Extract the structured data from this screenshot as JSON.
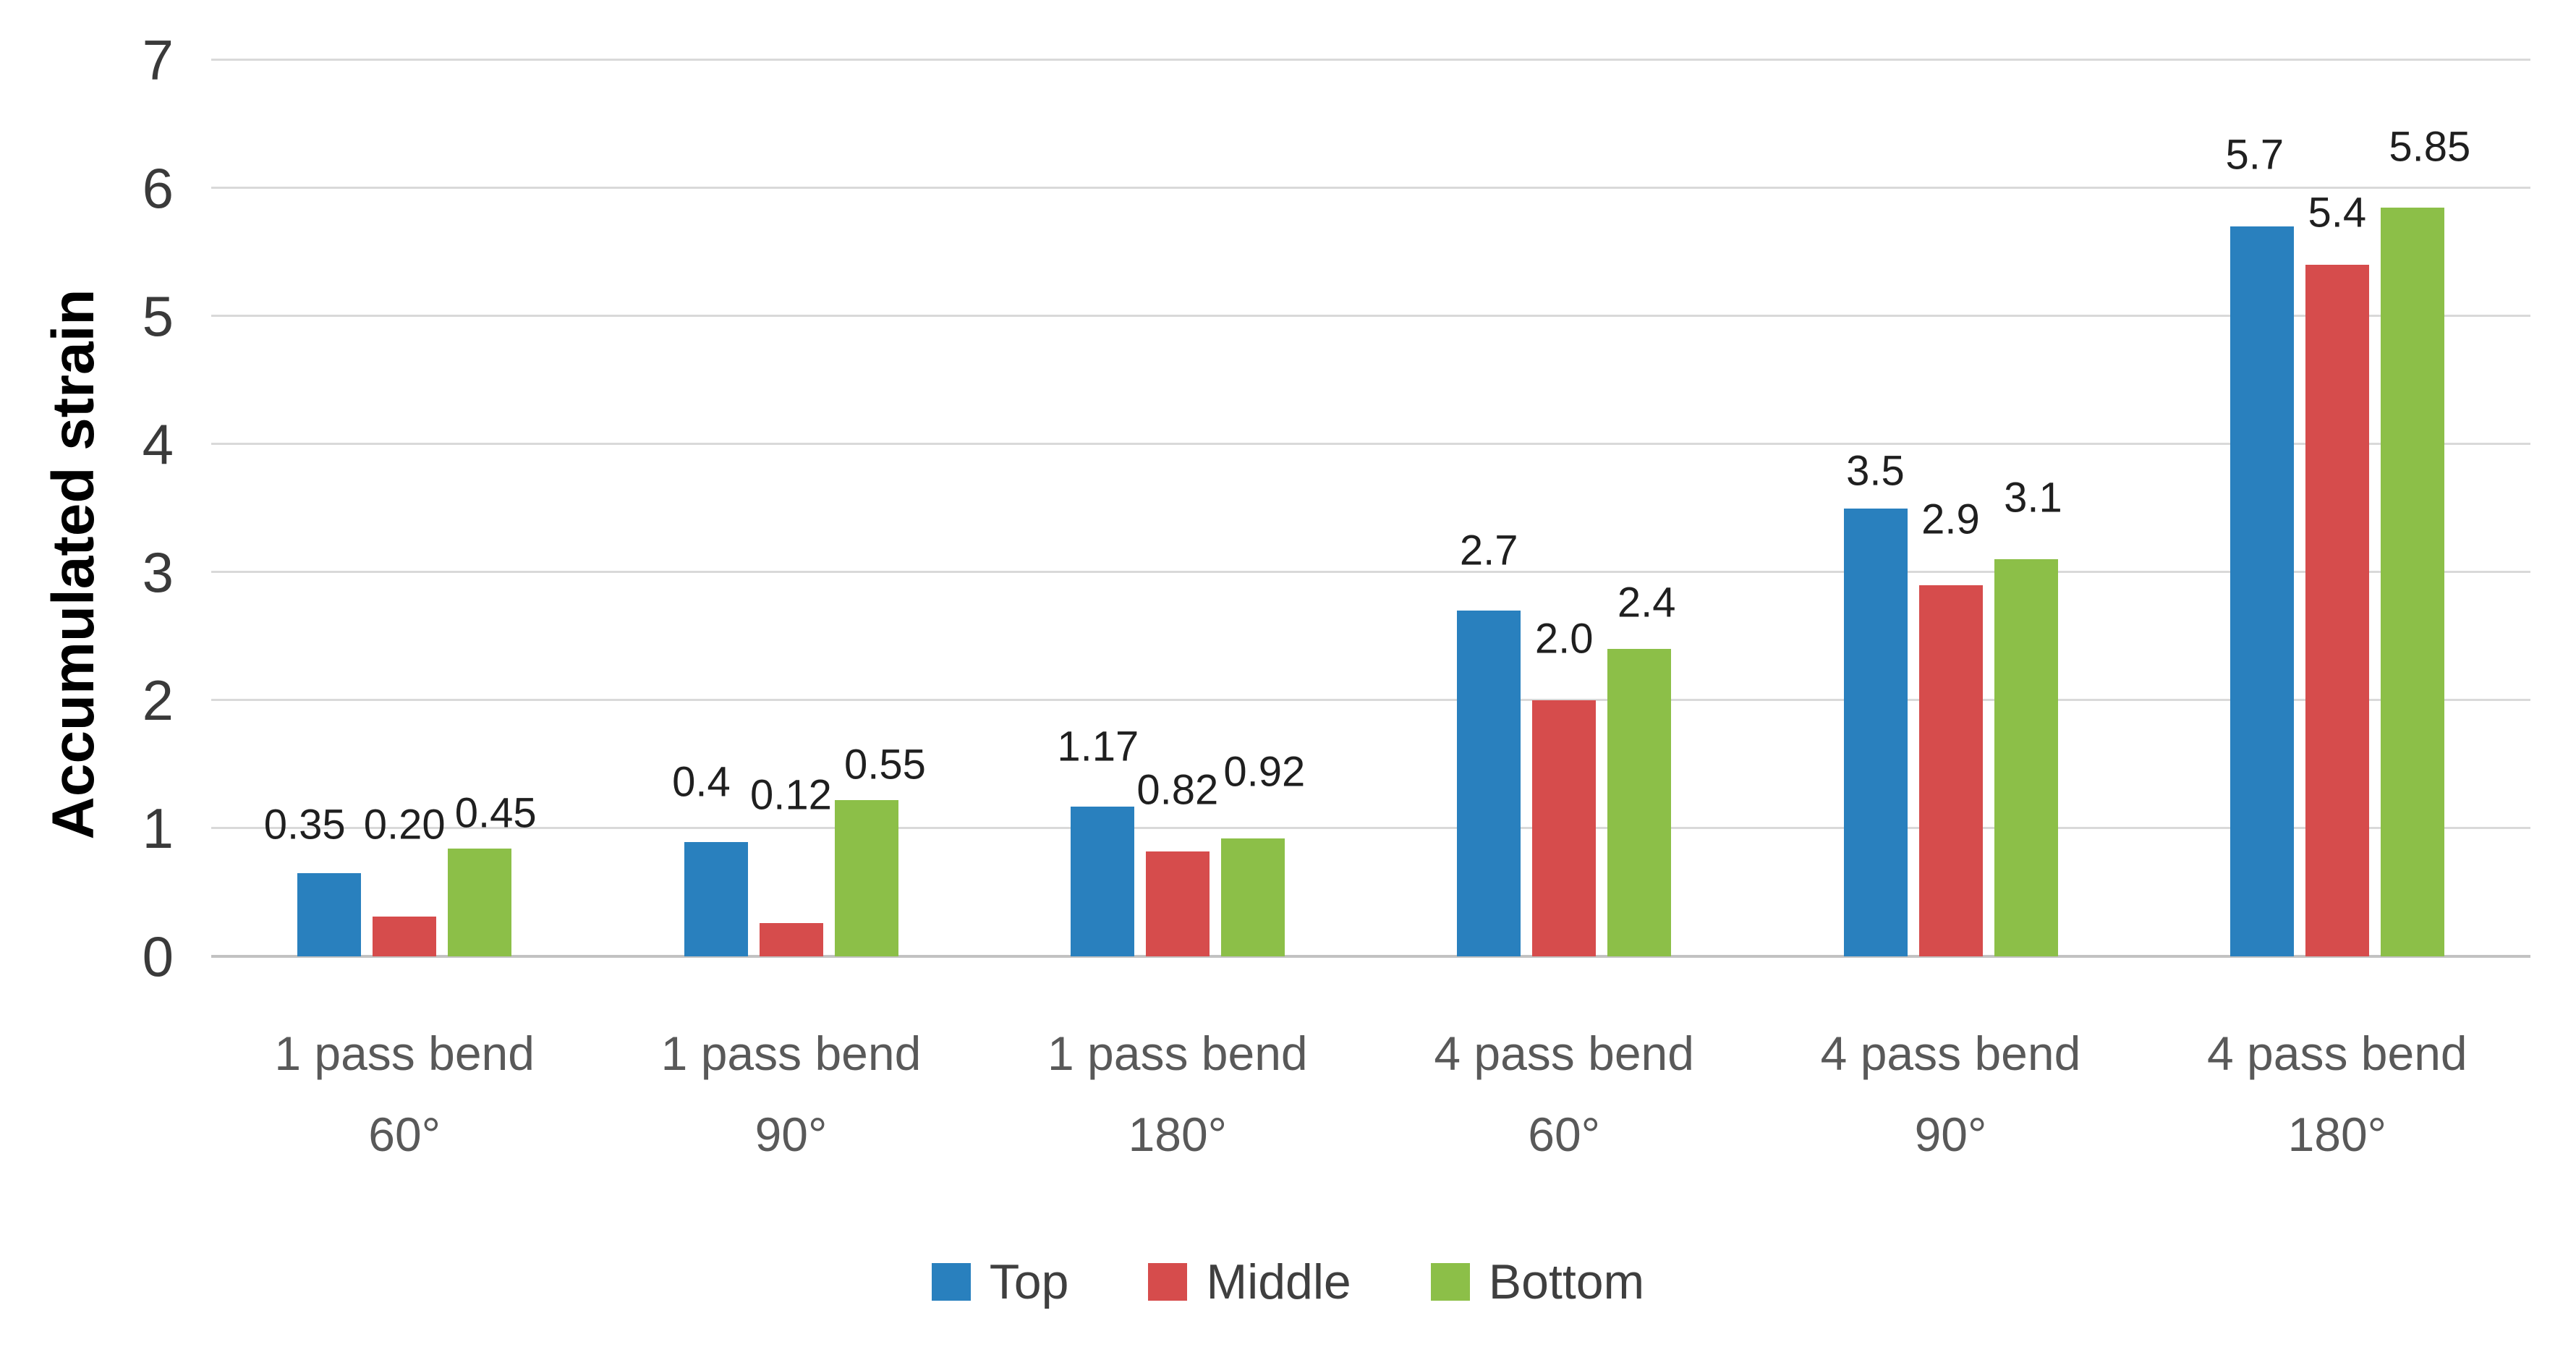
{
  "chart_data": {
    "type": "bar",
    "title": "",
    "ylabel": "Accumulated strain",
    "xlabel": "",
    "ylim": [
      0,
      7
    ],
    "yticks": [
      0,
      1,
      2,
      3,
      4,
      5,
      6,
      7
    ],
    "grid": true,
    "legend_position": "bottom-center",
    "background_color": "#FFFFFF",
    "gridline_color": "#D9D9D9",
    "tick_label_color": "#3A3A3A",
    "category_label_color": "#595959",
    "value_label_color": "#1F1F1F",
    "legend_label_color": "#3F3F3F",
    "categories": [
      {
        "line1": "1 pass bend",
        "line2": "60°"
      },
      {
        "line1": "1 pass bend",
        "line2": "90°"
      },
      {
        "line1": "1 pass bend",
        "line2": "180°"
      },
      {
        "line1": "4 pass bend",
        "line2": "60°"
      },
      {
        "line1": "4 pass bend",
        "line2": "90°"
      },
      {
        "line1": "4 pass bend",
        "line2": "180°"
      }
    ],
    "series": [
      {
        "name": "Top",
        "color": "#2980BE",
        "values": [
          0.35,
          0.4,
          1.17,
          2.7,
          3.5,
          5.7
        ],
        "value_labels": [
          "0.35",
          "0.4",
          "1.17",
          "2.7",
          "3.5",
          "5.7"
        ],
        "drawn_bar_heights": [
          0.65,
          0.89,
          1.17,
          2.7,
          3.5,
          5.7
        ],
        "label_center_y": [
          1.03,
          1.36,
          1.64,
          3.17,
          3.79,
          6.26
        ],
        "label_dx": [
          -34,
          -20,
          -6,
          0,
          0,
          -10
        ]
      },
      {
        "name": "Middle",
        "color": "#D64C4C",
        "values": [
          0.2,
          0.12,
          0.82,
          2.0,
          2.9,
          5.4
        ],
        "value_labels": [
          "0.20",
          "0.12",
          "0.82",
          "2.0",
          "2.9",
          "5.4"
        ],
        "drawn_bar_heights": [
          0.31,
          0.26,
          0.82,
          2.0,
          2.9,
          5.4
        ],
        "label_center_y": [
          1.03,
          1.26,
          1.3,
          2.48,
          3.41,
          5.81
        ],
        "label_dx": [
          0,
          0,
          0,
          0,
          0,
          0
        ]
      },
      {
        "name": "Bottom",
        "color": "#8CBF48",
        "values": [
          0.45,
          0.55,
          0.92,
          2.4,
          3.1,
          5.85
        ],
        "value_labels": [
          "0.45",
          "0.55",
          "0.92",
          "2.4",
          "3.1",
          "5.85"
        ],
        "drawn_bar_heights": [
          0.84,
          1.22,
          0.92,
          2.4,
          3.1,
          5.85
        ],
        "label_center_y": [
          1.12,
          1.5,
          1.44,
          2.76,
          3.58,
          6.32
        ],
        "label_dx": [
          22,
          26,
          16,
          10,
          10,
          24
        ]
      }
    ]
  }
}
